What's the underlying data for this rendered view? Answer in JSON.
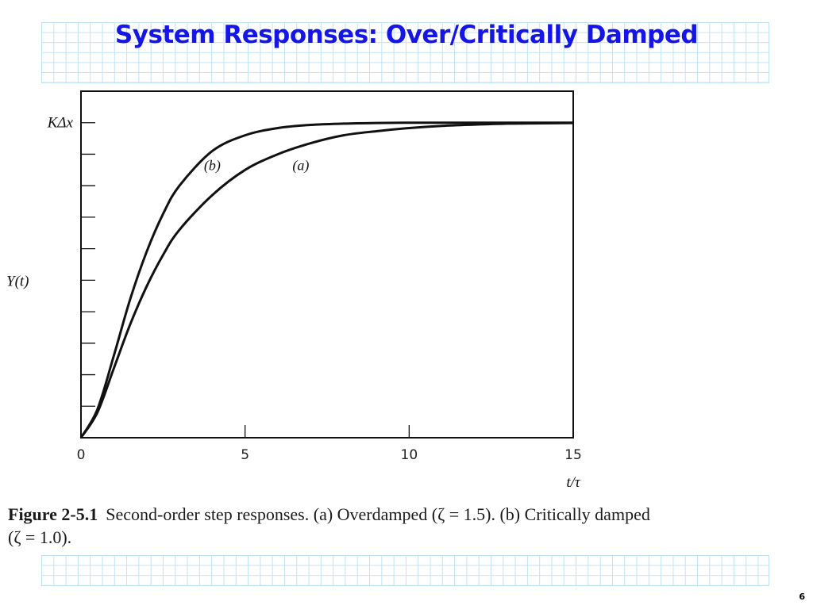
{
  "slide": {
    "title": "System Responses: Over/Critically Damped",
    "title_color": "#1515e6",
    "page_number": "6"
  },
  "figure": {
    "label": "Figure 2-5.1",
    "caption_line1": "Second-order step responses. (a) Overdamped (ζ = 1.5). (b) Critically damped",
    "caption_line2": "(ζ = 1.0)."
  },
  "chart_data": {
    "type": "line",
    "xlabel": "t/τ",
    "ylabel": "Y(t)",
    "y_top_label": "KΔx",
    "xlim": [
      0,
      15
    ],
    "ylim": [
      0,
      1.1
    ],
    "x_ticks": [
      0,
      5,
      10,
      15
    ],
    "x_tick_labels": [
      "0",
      "5",
      "10",
      "15"
    ],
    "y_minor_ticks": [
      0.1,
      0.2,
      0.3,
      0.4,
      0.5,
      0.6,
      0.7,
      0.8,
      0.9,
      1.0
    ],
    "grid": false,
    "series": [
      {
        "name": "(a)",
        "zeta": 1.5,
        "x": [
          0,
          0.5,
          1,
          1.5,
          2,
          2.5,
          3,
          4,
          5,
          6,
          7,
          8,
          9,
          10,
          11,
          12,
          13,
          14,
          15
        ],
        "y": [
          0,
          0.08,
          0.22,
          0.36,
          0.48,
          0.58,
          0.66,
          0.77,
          0.85,
          0.9,
          0.935,
          0.96,
          0.973,
          0.983,
          0.99,
          0.994,
          0.997,
          0.998,
          0.999
        ]
      },
      {
        "name": "(b)",
        "zeta": 1.0,
        "x": [
          0,
          0.5,
          1,
          1.5,
          2,
          2.5,
          3,
          4,
          5,
          6,
          7,
          8,
          9,
          10,
          11,
          12,
          13,
          14,
          15
        ],
        "y": [
          0,
          0.09,
          0.26,
          0.44,
          0.59,
          0.71,
          0.8,
          0.91,
          0.96,
          0.983,
          0.993,
          0.997,
          0.999,
          1.0,
          1.0,
          1.0,
          1.0,
          1.0,
          1.0
        ]
      }
    ],
    "annotations": [
      {
        "text": "(b)",
        "x": 4.0,
        "y": 0.85
      },
      {
        "text": "(a)",
        "x": 6.7,
        "y": 0.85
      }
    ]
  }
}
